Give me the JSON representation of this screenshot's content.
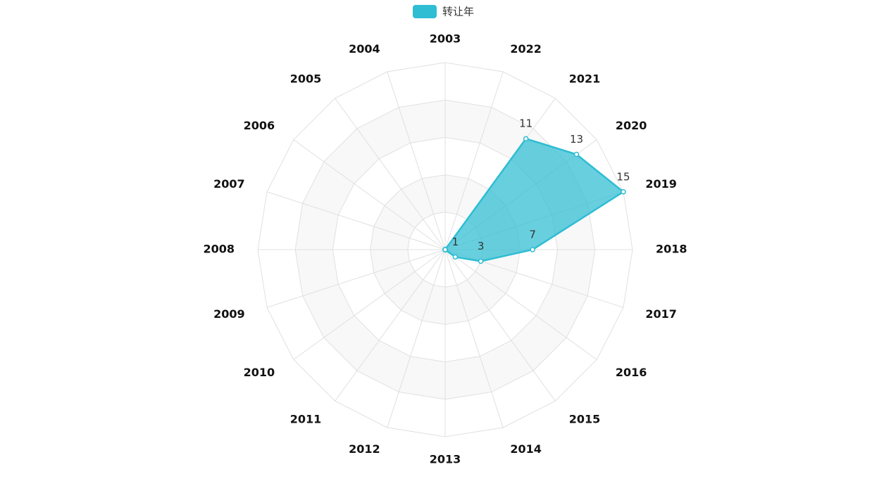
{
  "chart_data": {
    "type": "radar",
    "categories": [
      "2003",
      "2004",
      "2005",
      "2006",
      "2007",
      "2008",
      "2009",
      "2010",
      "2011",
      "2012",
      "2013",
      "2014",
      "2015",
      "2016",
      "2017",
      "2018",
      "2019",
      "2020",
      "2021",
      "2022"
    ],
    "series": [
      {
        "name": "转让年",
        "color": "#2ebdd3",
        "values": [
          0,
          0,
          0,
          0,
          0,
          0,
          0,
          0,
          0,
          0,
          0,
          0,
          0,
          1,
          3,
          7,
          15,
          13,
          11,
          0
        ]
      }
    ],
    "rlim": [
      0,
      15
    ],
    "rticks": [
      3,
      6,
      9,
      12,
      15
    ]
  }
}
